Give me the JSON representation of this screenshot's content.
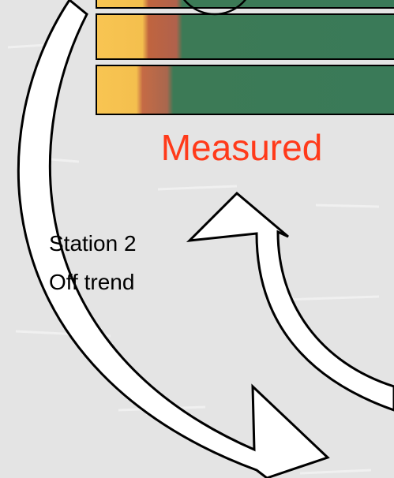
{
  "measured_label": "Measured",
  "station_note": {
    "line1": "Station 2",
    "line2": "Off trend"
  }
}
